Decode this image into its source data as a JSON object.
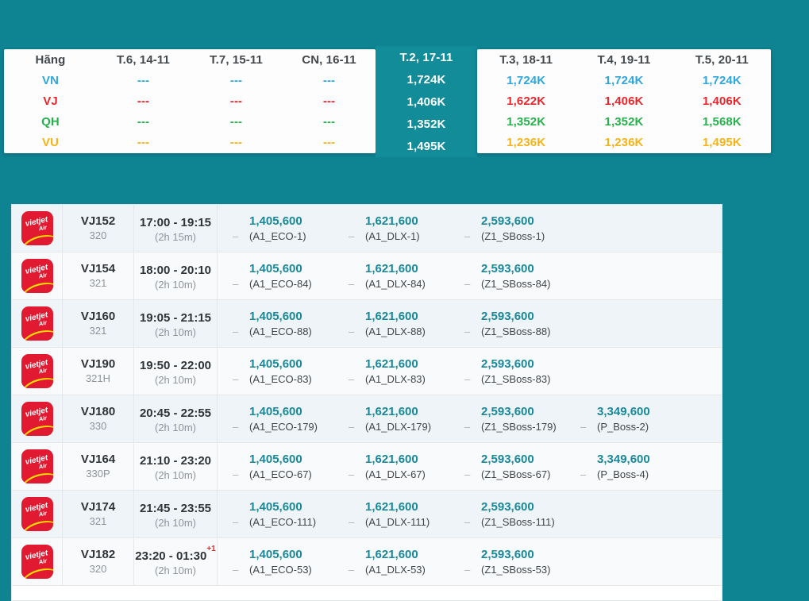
{
  "colors": {
    "page_bg": "#0e8391",
    "selected_column_bg": "#138c9a",
    "price_teal": "#18889a",
    "airline_vn": "#2ea7dc",
    "airline_vj": "#e8272d",
    "airline_qh": "#26b14c",
    "airline_vu": "#f4b417"
  },
  "fare_calendar": {
    "header_label": "Hãng",
    "left_days": [
      "T.6, 14-11",
      "T.7, 15-11",
      "CN, 16-11"
    ],
    "selected": {
      "label": "T.2, 17-11",
      "values": [
        "1,724K",
        "1,406K",
        "1,352K",
        "1,495K"
      ]
    },
    "right_days": [
      "T.3, 18-11",
      "T.4, 19-11",
      "T.5, 20-11"
    ],
    "airlines": [
      {
        "code": "VN",
        "left": [
          "---",
          "---",
          "---"
        ],
        "right": [
          "1,724K",
          "1,724K",
          "1,724K"
        ]
      },
      {
        "code": "VJ",
        "left": [
          "---",
          "---",
          "---"
        ],
        "right": [
          "1,622K",
          "1,406K",
          "1,406K"
        ]
      },
      {
        "code": "QH",
        "left": [
          "---",
          "---",
          "---"
        ],
        "right": [
          "1,352K",
          "1,352K",
          "1,568K"
        ]
      },
      {
        "code": "VU",
        "left": [
          "---",
          "---",
          "---"
        ],
        "right": [
          "1,236K",
          "1,236K",
          "1,495K"
        ]
      }
    ]
  },
  "logo": {
    "line1": "vietjet",
    "line2": "Air"
  },
  "flights": [
    {
      "flight_no": "VJ152",
      "aircraft": "320",
      "time": "17:00 - 19:15",
      "duration": "(2h 15m)",
      "fares": [
        {
          "dash": "–",
          "price": "1,405,600",
          "label": "(A1_ECO-1)"
        },
        {
          "dash": "–",
          "price": "1,621,600",
          "label": "(A1_DLX-1)"
        },
        {
          "dash": "–",
          "price": "2,593,600",
          "label": "(Z1_SBoss-1)"
        }
      ]
    },
    {
      "flight_no": "VJ154",
      "aircraft": "321",
      "time": "18:00 - 20:10",
      "duration": "(2h 10m)",
      "fares": [
        {
          "dash": "–",
          "price": "1,405,600",
          "label": "(A1_ECO-84)"
        },
        {
          "dash": "–",
          "price": "1,621,600",
          "label": "(A1_DLX-84)"
        },
        {
          "dash": "–",
          "price": "2,593,600",
          "label": "(Z1_SBoss-84)"
        }
      ]
    },
    {
      "flight_no": "VJ160",
      "aircraft": "321",
      "time": "19:05 - 21:15",
      "duration": "(2h 10m)",
      "fares": [
        {
          "dash": "–",
          "price": "1,405,600",
          "label": "(A1_ECO-88)"
        },
        {
          "dash": "–",
          "price": "1,621,600",
          "label": "(A1_DLX-88)"
        },
        {
          "dash": "–",
          "price": "2,593,600",
          "label": "(Z1_SBoss-88)"
        }
      ]
    },
    {
      "flight_no": "VJ190",
      "aircraft": "321H",
      "time": "19:50 - 22:00",
      "duration": "(2h 10m)",
      "fares": [
        {
          "dash": "–",
          "price": "1,405,600",
          "label": "(A1_ECO-83)"
        },
        {
          "dash": "–",
          "price": "1,621,600",
          "label": "(A1_DLX-83)"
        },
        {
          "dash": "–",
          "price": "2,593,600",
          "label": "(Z1_SBoss-83)"
        }
      ]
    },
    {
      "flight_no": "VJ180",
      "aircraft": "330",
      "time": "20:45 - 22:55",
      "duration": "(2h 10m)",
      "fares": [
        {
          "dash": "–",
          "price": "1,405,600",
          "label": "(A1_ECO-179)"
        },
        {
          "dash": "–",
          "price": "1,621,600",
          "label": "(A1_DLX-179)"
        },
        {
          "dash": "–",
          "price": "2,593,600",
          "label": "(Z1_SBoss-179)"
        },
        {
          "dash": "–",
          "price": "3,349,600",
          "label": "(P_Boss-2)"
        }
      ]
    },
    {
      "flight_no": "VJ164",
      "aircraft": "330P",
      "time": "21:10 - 23:20",
      "duration": "(2h 10m)",
      "fares": [
        {
          "dash": "–",
          "price": "1,405,600",
          "label": "(A1_ECO-67)"
        },
        {
          "dash": "–",
          "price": "1,621,600",
          "label": "(A1_DLX-67)"
        },
        {
          "dash": "–",
          "price": "2,593,600",
          "label": "(Z1_SBoss-67)"
        },
        {
          "dash": "–",
          "price": "3,349,600",
          "label": "(P_Boss-4)"
        }
      ]
    },
    {
      "flight_no": "VJ174",
      "aircraft": "321",
      "time": "21:45 - 23:55",
      "duration": "(2h 10m)",
      "fares": [
        {
          "dash": "–",
          "price": "1,405,600",
          "label": "(A1_ECO-111)"
        },
        {
          "dash": "–",
          "price": "1,621,600",
          "label": "(A1_DLX-111)"
        },
        {
          "dash": "–",
          "price": "2,593,600",
          "label": "(Z1_SBoss-111)"
        }
      ]
    },
    {
      "flight_no": "VJ182",
      "aircraft": "320",
      "time": "23:20 - 01:30",
      "day_offset": "+1",
      "duration": "(2h 10m)",
      "fares": [
        {
          "dash": "–",
          "price": "1,405,600",
          "label": "(A1_ECO-53)"
        },
        {
          "dash": "–",
          "price": "1,621,600",
          "label": "(A1_DLX-53)"
        },
        {
          "dash": "–",
          "price": "2,593,600",
          "label": "(Z1_SBoss-53)"
        }
      ]
    }
  ]
}
